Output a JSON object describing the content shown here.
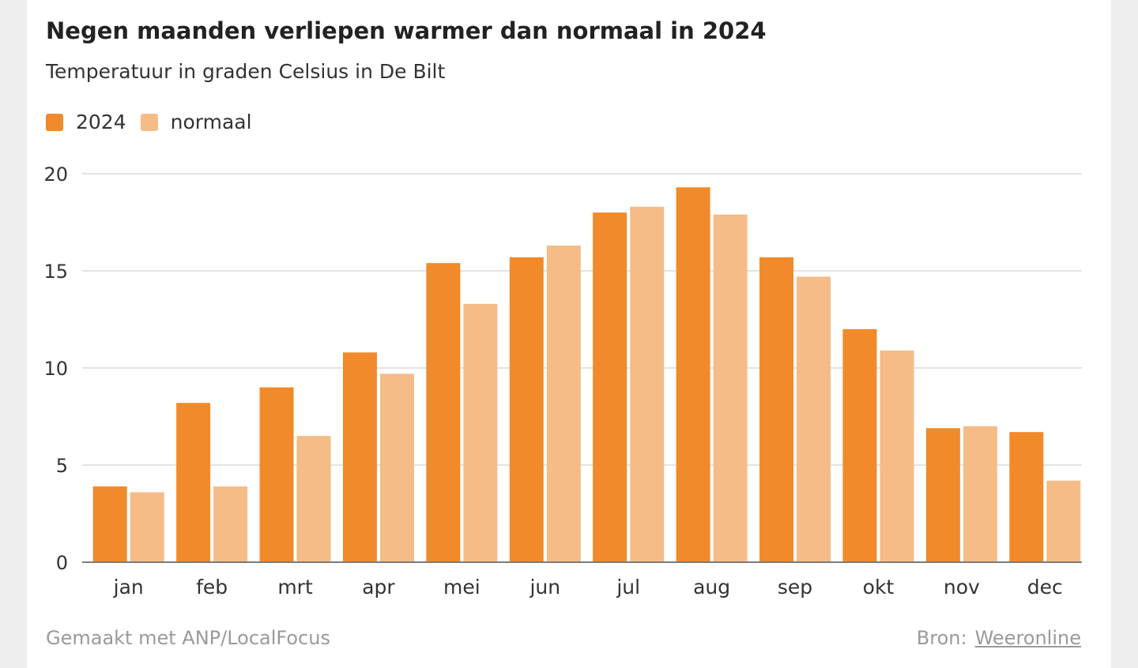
{
  "colors": {
    "series_2024": "#f18a2a",
    "series_normaal": "#f5bc87",
    "grid": "#e3e3e3",
    "axis": "#7a7a7a"
  },
  "chart_data": {
    "type": "bar",
    "title": "Negen maanden verliepen warmer dan normaal in 2024",
    "subtitle": "Temperatuur in graden Celsius in De Bilt",
    "categories": [
      "jan",
      "feb",
      "mrt",
      "apr",
      "mei",
      "jun",
      "jul",
      "aug",
      "sep",
      "okt",
      "nov",
      "dec"
    ],
    "series": [
      {
        "name": "2024",
        "values": [
          3.9,
          8.2,
          9.0,
          10.8,
          15.4,
          15.7,
          18.0,
          19.3,
          15.7,
          12.0,
          6.9,
          6.7
        ]
      },
      {
        "name": "normaal",
        "values": [
          3.6,
          3.9,
          6.5,
          9.7,
          13.3,
          16.3,
          18.3,
          17.9,
          14.7,
          10.9,
          7.0,
          4.2
        ]
      }
    ],
    "yticks": [
      0,
      5,
      10,
      15,
      20
    ],
    "ylim": [
      0,
      20
    ],
    "grid": true,
    "legend": "top-left"
  },
  "footer": {
    "credit": "Gemaakt met ANP/LocalFocus",
    "source_label": "Bron:",
    "source_link": "Weeronline"
  }
}
